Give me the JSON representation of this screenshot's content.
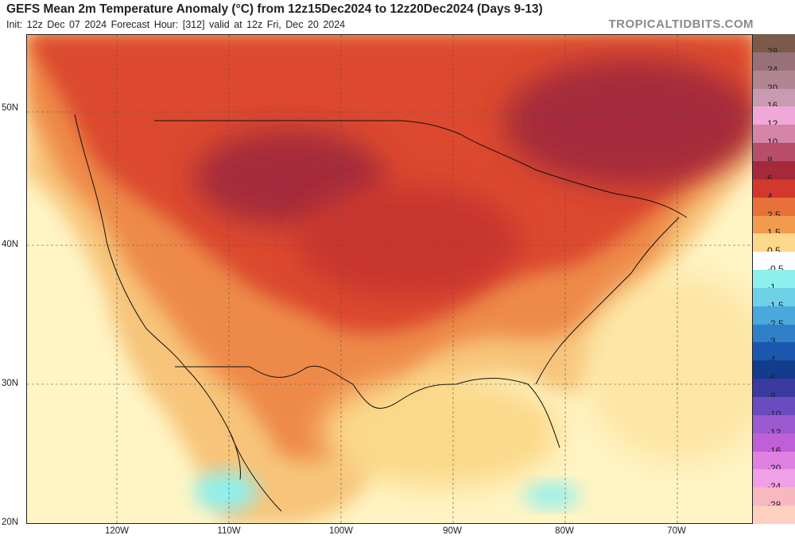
{
  "header": {
    "title": "GEFS Mean 2m Temperature Anomaly (°C) from 12z15Dec2024 to 12z20Dec2024 (Days 9-13)",
    "subtitle": "Init: 12z Dec 07 2024   Forecast Hour: [312]   valid at 12z Fri, Dec 20 2024",
    "brand": "TROPICALTIDBITS.COM"
  },
  "map": {
    "latitude_labels": [
      "50N",
      "40N",
      "30N",
      "20N"
    ],
    "longitude_labels": [
      "120W",
      "110W",
      "100W",
      "90W",
      "80W",
      "70W"
    ],
    "land_color": "#f5d97a",
    "ocean_color": "#fffbe0",
    "anomaly_regions": [
      {
        "name": "northern-plains-maximum",
        "anomaly_c": 6
      },
      {
        "name": "eastern-canada-maximum",
        "anomaly_c": 6
      },
      {
        "name": "midwest-warm-core",
        "anomaly_c": 4
      },
      {
        "name": "western-us-warm",
        "anomaly_c": 2.5
      },
      {
        "name": "gulf-coast-mild",
        "anomaly_c": 1.5
      },
      {
        "name": "pacific-cool-spot",
        "anomaly_c": -0.5
      }
    ]
  },
  "colorbar": {
    "levels": [
      {
        "label": "28",
        "color": "#7a5a48"
      },
      {
        "label": "24",
        "color": "#98707a"
      },
      {
        "label": "20",
        "color": "#b18592"
      },
      {
        "label": "16",
        "color": "#c99bb2"
      },
      {
        "label": "12",
        "color": "#f0a8d8"
      },
      {
        "label": "10",
        "color": "#d585a8"
      },
      {
        "label": "8",
        "color": "#b84e6c"
      },
      {
        "label": "6",
        "color": "#a5293a"
      },
      {
        "label": "4",
        "color": "#d2382e"
      },
      {
        "label": "2.5",
        "color": "#e8703a"
      },
      {
        "label": "1.5",
        "color": "#f29a4e"
      },
      {
        "label": "0.5",
        "color": "#fcd88a"
      },
      {
        "label": "-0.5",
        "color": "#ffffff"
      },
      {
        "label": "-1",
        "color": "#8ef0ee"
      },
      {
        "label": "-1.5",
        "color": "#70d0e8"
      },
      {
        "label": "-2.5",
        "color": "#4aa8dc"
      },
      {
        "label": "-3",
        "color": "#2f80c8"
      },
      {
        "label": "-4",
        "color": "#1a58b0"
      },
      {
        "label": "-6",
        "color": "#143c8c"
      },
      {
        "label": "-8",
        "color": "#3a3aa0"
      },
      {
        "label": "-10",
        "color": "#6a4bc0"
      },
      {
        "label": "-12",
        "color": "#9a5ad0"
      },
      {
        "label": "-16",
        "color": "#c060d8"
      },
      {
        "label": "-20",
        "color": "#e080e0"
      },
      {
        "label": "-24",
        "color": "#f0a0e6"
      },
      {
        "label": "-28",
        "color": "#f8b8c0"
      },
      {
        "label": "",
        "color": "#fdd0c0"
      }
    ]
  }
}
